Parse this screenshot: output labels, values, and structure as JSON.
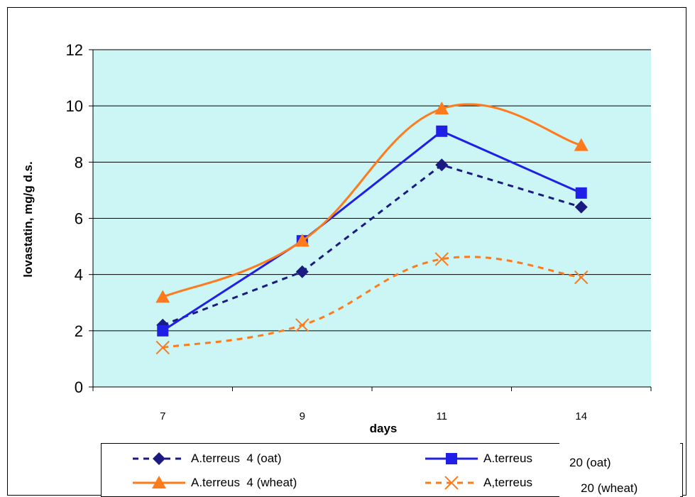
{
  "chart_data": {
    "type": "line",
    "title": "",
    "xlabel": "days",
    "ylabel": "lovastatin,  mg/g d.s.",
    "categories": [
      "7",
      "9",
      "11",
      "14"
    ],
    "ylim": [
      0,
      12
    ],
    "yticks": [
      0,
      2,
      4,
      6,
      8,
      10,
      12
    ],
    "grid": true,
    "plot_background": "#ccf5f5",
    "legend_position": "bottom",
    "series": [
      {
        "name": "A.terreus  4 (oat)",
        "values": [
          2.2,
          4.1,
          7.9,
          6.4
        ],
        "color": "#1a1a80",
        "marker": "diamond",
        "dash": true,
        "smooth": false
      },
      {
        "name": "A.terreus  20 (oat)",
        "values": [
          2.0,
          5.2,
          9.1,
          6.9
        ],
        "color": "#1f1fe6",
        "marker": "square",
        "dash": false,
        "smooth": false
      },
      {
        "name": "A.terreus  4 (wheat)",
        "values": [
          3.2,
          5.2,
          9.9,
          8.6
        ],
        "color": "#ff7a1a",
        "marker": "triangle",
        "dash": false,
        "smooth": true
      },
      {
        "name": "A,terreus  20 (wheat)",
        "values": [
          1.4,
          2.2,
          4.55,
          3.9
        ],
        "color": "#ff7a1a",
        "marker": "x",
        "dash": true,
        "smooth": true
      }
    ]
  },
  "legend": {
    "item_0_text": "A.terreus  4 (oat)",
    "item_1_text": "A.terreus",
    "item_1_suffix": "20 (oat)",
    "item_2_text": "A.terreus  4 (wheat)",
    "item_3_text": "A,terreus",
    "item_3_suffix": "20 (wheat)"
  }
}
